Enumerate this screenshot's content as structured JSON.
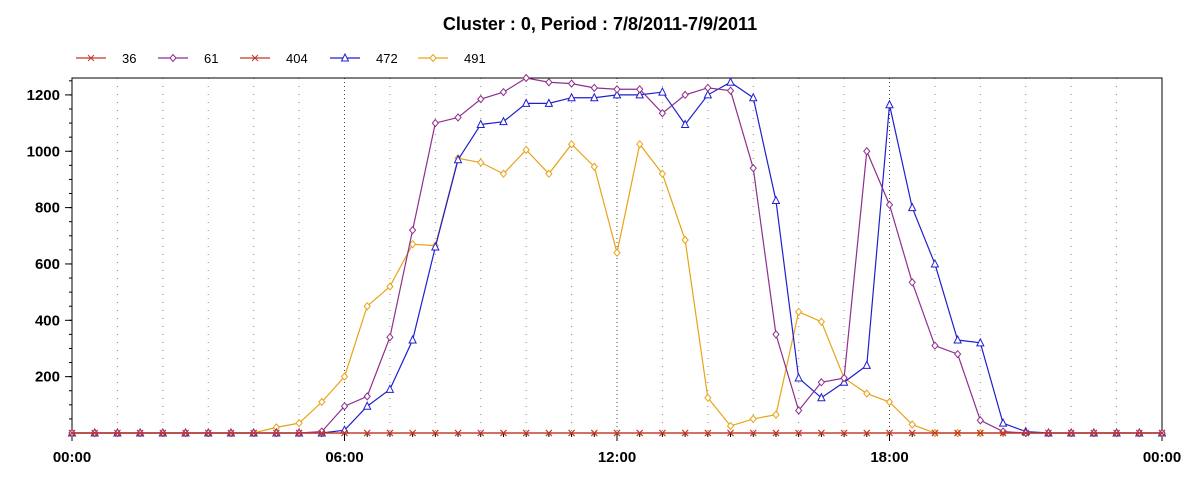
{
  "chart_data": {
    "type": "line",
    "title": "Cluster : 0, Period : 7/8/2011-7/9/2011",
    "xlabel": "",
    "ylabel": "",
    "x_range_hours": [
      0,
      24
    ],
    "x_tick_labels": [
      "00:00",
      "06:00",
      "12:00",
      "18:00",
      "00:00"
    ],
    "x_tick_hours": [
      0,
      6,
      12,
      18,
      24
    ],
    "ylim": [
      0,
      1260
    ],
    "y_ticks": [
      200,
      400,
      600,
      800,
      1000,
      1200
    ],
    "grid": "vertical dotted lines",
    "legend_position": "top-left",
    "x_hours": [
      0,
      0.5,
      1,
      1.5,
      2,
      2.5,
      3,
      3.5,
      4,
      4.5,
      5,
      5.5,
      6,
      6.5,
      7,
      7.5,
      8,
      8.5,
      9,
      9.5,
      10,
      10.5,
      11,
      11.5,
      12,
      12.5,
      13,
      13.5,
      14,
      14.5,
      15,
      15.5,
      16,
      16.5,
      17,
      17.5,
      18,
      18.5,
      19,
      19.5,
      20,
      20.5,
      21,
      21.5,
      22,
      22.5,
      23,
      23.5,
      24
    ],
    "series": [
      {
        "name": "36",
        "color": "#c0392b",
        "marker": "x",
        "values": [
          0,
          0,
          0,
          0,
          0,
          0,
          0,
          0,
          0,
          0,
          0,
          0,
          0,
          0,
          0,
          0,
          0,
          0,
          0,
          0,
          0,
          0,
          0,
          0,
          0,
          0,
          0,
          0,
          0,
          0,
          0,
          0,
          0,
          0,
          0,
          0,
          0,
          0,
          0,
          0,
          0,
          0,
          0,
          0,
          0,
          0,
          0,
          0,
          0
        ]
      },
      {
        "name": "61",
        "color": "#8e2f8e",
        "marker": "diamond",
        "values": [
          0,
          0,
          0,
          0,
          0,
          0,
          0,
          0,
          0,
          0,
          0,
          5,
          95,
          130,
          340,
          720,
          1100,
          1120,
          1185,
          1210,
          1260,
          1245,
          1240,
          1225,
          1220,
          1220,
          1135,
          1200,
          1225,
          1215,
          940,
          350,
          80,
          180,
          195,
          1000,
          810,
          535,
          310,
          280,
          45,
          5,
          0,
          0,
          0,
          0,
          0,
          0,
          0
        ]
      },
      {
        "name": "404",
        "color": "#c0392b",
        "marker": "x",
        "values": [
          0,
          0,
          0,
          0,
          0,
          0,
          0,
          0,
          0,
          0,
          0,
          0,
          0,
          0,
          0,
          0,
          0,
          0,
          0,
          0,
          0,
          0,
          0,
          0,
          0,
          0,
          0,
          0,
          0,
          0,
          0,
          0,
          0,
          0,
          0,
          0,
          0,
          0,
          0,
          0,
          0,
          0,
          0,
          0,
          0,
          0,
          0,
          0,
          0
        ]
      },
      {
        "name": "472",
        "color": "#1f1fd0",
        "marker": "triangle",
        "values": [
          0,
          0,
          0,
          0,
          0,
          0,
          0,
          0,
          0,
          0,
          0,
          0,
          10,
          95,
          155,
          330,
          660,
          970,
          1095,
          1105,
          1170,
          1170,
          1190,
          1190,
          1200,
          1200,
          1210,
          1095,
          1200,
          1245,
          1190,
          825,
          195,
          125,
          180,
          240,
          1165,
          800,
          600,
          330,
          320,
          35,
          5,
          0,
          0,
          0,
          0,
          0,
          0
        ]
      },
      {
        "name": "491",
        "color": "#e8a317",
        "marker": "diamond",
        "values": [
          0,
          0,
          0,
          0,
          0,
          0,
          0,
          0,
          0,
          20,
          35,
          110,
          200,
          450,
          520,
          670,
          665,
          975,
          960,
          920,
          1005,
          920,
          1025,
          945,
          640,
          1025,
          920,
          685,
          125,
          25,
          50,
          65,
          430,
          395,
          195,
          140,
          110,
          30,
          0,
          0,
          0,
          0,
          0,
          0,
          0,
          0,
          0,
          0,
          0
        ]
      }
    ]
  }
}
